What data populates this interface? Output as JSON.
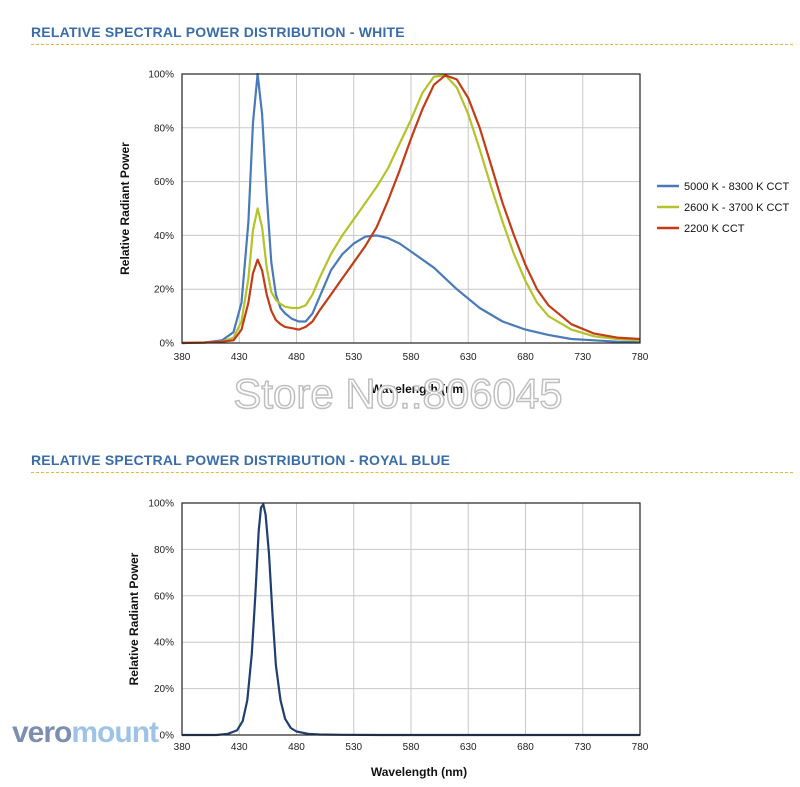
{
  "sections": {
    "white_title": "RELATIVE SPECTRAL POWER DISTRIBUTION - WHITE",
    "royal_blue_title": "RELATIVE SPECTRAL POWER DISTRIBUTION - ROYAL BLUE"
  },
  "watermark_text": "Store No.:806045",
  "brand": {
    "part1": "vero",
    "part2": "mount"
  },
  "chart_data": [
    {
      "type": "line",
      "title": "RELATIVE SPECTRAL POWER DISTRIBUTION - WHITE",
      "xlabel": "Wavelength (nm)",
      "ylabel": "Relative Radiant Power",
      "xlim": [
        380,
        780
      ],
      "ylim": [
        0,
        100
      ],
      "x_ticks": [
        380,
        430,
        480,
        530,
        580,
        630,
        680,
        730,
        780
      ],
      "y_ticks": [
        "0%",
        "20%",
        "40%",
        "60%",
        "80%",
        "100%"
      ],
      "grid": true,
      "legend_position": "right",
      "series": [
        {
          "name": "5000 K - 8300 K CCT",
          "color": "#4a7ab8",
          "x": [
            380,
            400,
            415,
            425,
            432,
            438,
            442,
            446,
            450,
            454,
            458,
            462,
            466,
            470,
            476,
            482,
            488,
            494,
            500,
            510,
            520,
            530,
            540,
            550,
            560,
            570,
            580,
            600,
            620,
            640,
            660,
            680,
            700,
            720,
            740,
            760,
            780
          ],
          "y": [
            0,
            0.2,
            1,
            4,
            15,
            45,
            82,
            100,
            85,
            55,
            30,
            18,
            13,
            11,
            9,
            8,
            8,
            11,
            17,
            27,
            33,
            37,
            39.5,
            40,
            39,
            37,
            34,
            28,
            20,
            13,
            8,
            5,
            3,
            1.5,
            1,
            0.5,
            0.3
          ]
        },
        {
          "name": "2600 K - 3700 K CCT",
          "color": "#b5c22a",
          "x": [
            380,
            400,
            415,
            425,
            432,
            438,
            442,
            446,
            450,
            454,
            458,
            462,
            466,
            470,
            476,
            482,
            488,
            494,
            500,
            510,
            520,
            530,
            540,
            550,
            560,
            570,
            580,
            590,
            600,
            610,
            620,
            630,
            640,
            650,
            660,
            670,
            680,
            690,
            700,
            720,
            740,
            760,
            780
          ],
          "y": [
            0,
            0.2,
            0.5,
            2,
            8,
            24,
            42,
            50,
            43,
            28,
            19,
            16,
            14.5,
            13.5,
            13,
            13,
            14,
            18,
            24,
            33,
            40,
            46,
            52,
            58,
            65,
            74,
            83,
            93,
            99,
            99.5,
            95,
            85,
            72,
            58,
            45,
            33,
            23,
            15,
            10,
            5,
            2.5,
            1.5,
            1
          ]
        },
        {
          "name": "2200 K CCT",
          "color": "#c23d17",
          "x": [
            380,
            400,
            415,
            425,
            432,
            438,
            442,
            446,
            450,
            454,
            458,
            462,
            466,
            470,
            476,
            482,
            488,
            494,
            500,
            510,
            520,
            530,
            540,
            550,
            560,
            570,
            580,
            590,
            600,
            610,
            620,
            630,
            640,
            650,
            660,
            670,
            680,
            690,
            700,
            720,
            740,
            760,
            780
          ],
          "y": [
            0,
            0.2,
            0.5,
            1,
            5,
            15,
            26,
            31,
            27,
            18,
            12,
            8.5,
            7,
            6,
            5.5,
            5,
            6,
            8,
            12,
            18,
            24,
            30,
            36,
            43,
            53,
            64,
            76,
            87,
            96,
            99.5,
            98,
            91,
            80,
            66,
            52,
            40,
            29,
            20,
            14,
            7,
            3.5,
            2,
            1.5
          ]
        }
      ]
    },
    {
      "type": "line",
      "title": "RELATIVE SPECTRAL POWER DISTRIBUTION - ROYAL BLUE",
      "xlabel": "Wavelength (nm)",
      "ylabel": "Relative Radiant Power",
      "xlim": [
        380,
        780
      ],
      "ylim": [
        0,
        100
      ],
      "x_ticks": [
        380,
        430,
        480,
        530,
        580,
        630,
        680,
        730,
        780
      ],
      "y_ticks": [
        "0%",
        "20%",
        "40%",
        "60%",
        "80%",
        "100%"
      ],
      "grid": true,
      "series": [
        {
          "name": "",
          "color": "#1f3f73",
          "x": [
            380,
            410,
            420,
            428,
            433,
            437,
            441,
            444,
            447,
            449,
            451,
            453,
            456,
            459,
            462,
            466,
            470,
            475,
            480,
            490,
            500,
            520,
            560,
            620,
            700,
            780
          ],
          "y": [
            0,
            0,
            0.5,
            2,
            6,
            15,
            35,
            60,
            88,
            98,
            99.5,
            95,
            78,
            52,
            30,
            15,
            7,
            3,
            1.5,
            0.5,
            0.2,
            0.1,
            0,
            0,
            0,
            0
          ]
        }
      ]
    }
  ]
}
